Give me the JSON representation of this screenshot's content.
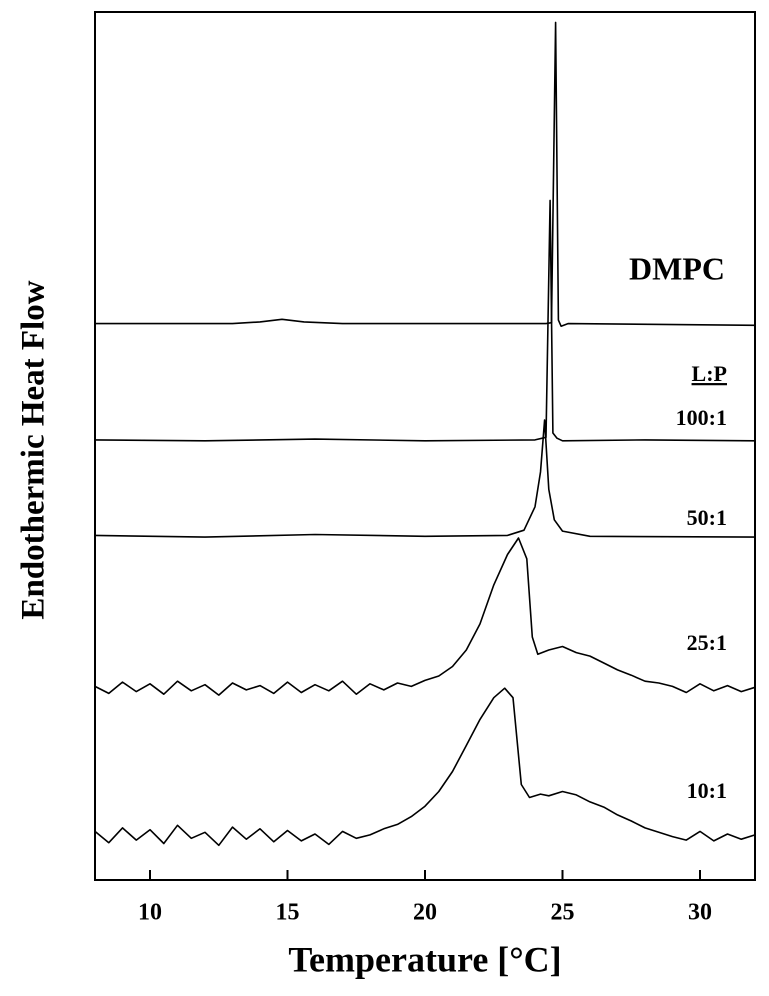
{
  "chart_data": {
    "type": "line",
    "x_label": "Temperature [°C]",
    "y_label": "Endothermic Heat Flow",
    "xlim": [
      8,
      32
    ],
    "xticks": [
      10,
      15,
      20,
      25,
      30
    ],
    "ylim": [
      0,
      100
    ],
    "legend_title": "L:P",
    "series": [
      {
        "name": "DMPC",
        "color": "#000000",
        "x": [
          8,
          13,
          14,
          14.8,
          15.6,
          17,
          24.4,
          24.6,
          24.75,
          24.85,
          24.95,
          25.2,
          32
        ],
        "values": [
          64.1,
          64.1,
          64.3,
          64.6,
          64.3,
          64.1,
          64.1,
          64.2,
          98.8,
          64.5,
          63.8,
          64.1,
          63.9
        ]
      },
      {
        "name": "100:1",
        "color": "#000000",
        "x": [
          8,
          12,
          16,
          20,
          24,
          24.4,
          24.55,
          24.65,
          24.8,
          25,
          28,
          32
        ],
        "values": [
          50.7,
          50.6,
          50.8,
          50.6,
          50.7,
          51.0,
          78.3,
          51.5,
          50.9,
          50.6,
          50.7,
          50.6
        ]
      },
      {
        "name": "50:1",
        "color": "#000000",
        "x": [
          8,
          12,
          16,
          20,
          23,
          23.6,
          24,
          24.2,
          24.35,
          24.5,
          24.7,
          25,
          26,
          32
        ],
        "values": [
          39.7,
          39.5,
          39.8,
          39.6,
          39.7,
          40.3,
          43,
          47,
          53.0,
          45,
          41.5,
          40.2,
          39.6,
          39.5
        ]
      },
      {
        "name": "25:1",
        "color": "#000000",
        "x": [
          8,
          8.5,
          9,
          9.5,
          10,
          10.5,
          11,
          11.5,
          12,
          12.5,
          13,
          13.5,
          14,
          14.5,
          15,
          15.5,
          16,
          16.5,
          17,
          17.5,
          18,
          18.5,
          19,
          19.5,
          20,
          20.5,
          21,
          21.5,
          22,
          22.5,
          23,
          23.4,
          23.7,
          23.9,
          24.1,
          24.5,
          25,
          25.5,
          26,
          26.5,
          27,
          27.5,
          28,
          28.5,
          29,
          29.5,
          30,
          30.5,
          31,
          31.5,
          32
        ],
        "values": [
          22.3,
          21.5,
          22.8,
          21.7,
          22.6,
          21.4,
          22.9,
          21.8,
          22.5,
          21.3,
          22.7,
          21.9,
          22.4,
          21.5,
          22.8,
          21.6,
          22.5,
          21.8,
          22.9,
          21.4,
          22.6,
          21.9,
          22.7,
          22.3,
          23.0,
          23.5,
          24.6,
          26.5,
          29.5,
          34.0,
          37.5,
          39.4,
          37.0,
          28.0,
          26.0,
          26.5,
          26.9,
          26.2,
          25.8,
          25.0,
          24.2,
          23.6,
          22.9,
          22.7,
          22.3,
          21.6,
          22.6,
          21.8,
          22.4,
          21.7,
          22.2
        ]
      },
      {
        "name": "10:1",
        "color": "#000000",
        "x": [
          8,
          8.5,
          9,
          9.5,
          10,
          10.5,
          11,
          11.5,
          12,
          12.5,
          13,
          13.5,
          14,
          14.5,
          15,
          15.5,
          16,
          16.5,
          17,
          17.5,
          18,
          18.5,
          19,
          19.5,
          20,
          20.5,
          21,
          21.5,
          22,
          22.5,
          22.9,
          23.2,
          23.5,
          23.8,
          24.2,
          24.5,
          25,
          25.5,
          26,
          26.5,
          27,
          27.5,
          28,
          28.5,
          29,
          29.5,
          30,
          30.5,
          31,
          31.5,
          32
        ],
        "values": [
          5.6,
          4.3,
          6.0,
          4.6,
          5.8,
          4.2,
          6.3,
          4.8,
          5.5,
          4.0,
          6.1,
          4.7,
          5.9,
          4.4,
          5.7,
          4.5,
          5.3,
          4.1,
          5.6,
          4.8,
          5.2,
          5.9,
          6.4,
          7.3,
          8.5,
          10.2,
          12.5,
          15.5,
          18.5,
          21.0,
          22.1,
          21.0,
          11.0,
          9.5,
          9.9,
          9.7,
          10.2,
          9.8,
          9.0,
          8.4,
          7.5,
          6.8,
          6.0,
          5.5,
          5.0,
          4.6,
          5.6,
          4.5,
          5.3,
          4.7,
          5.2
        ]
      }
    ]
  }
}
